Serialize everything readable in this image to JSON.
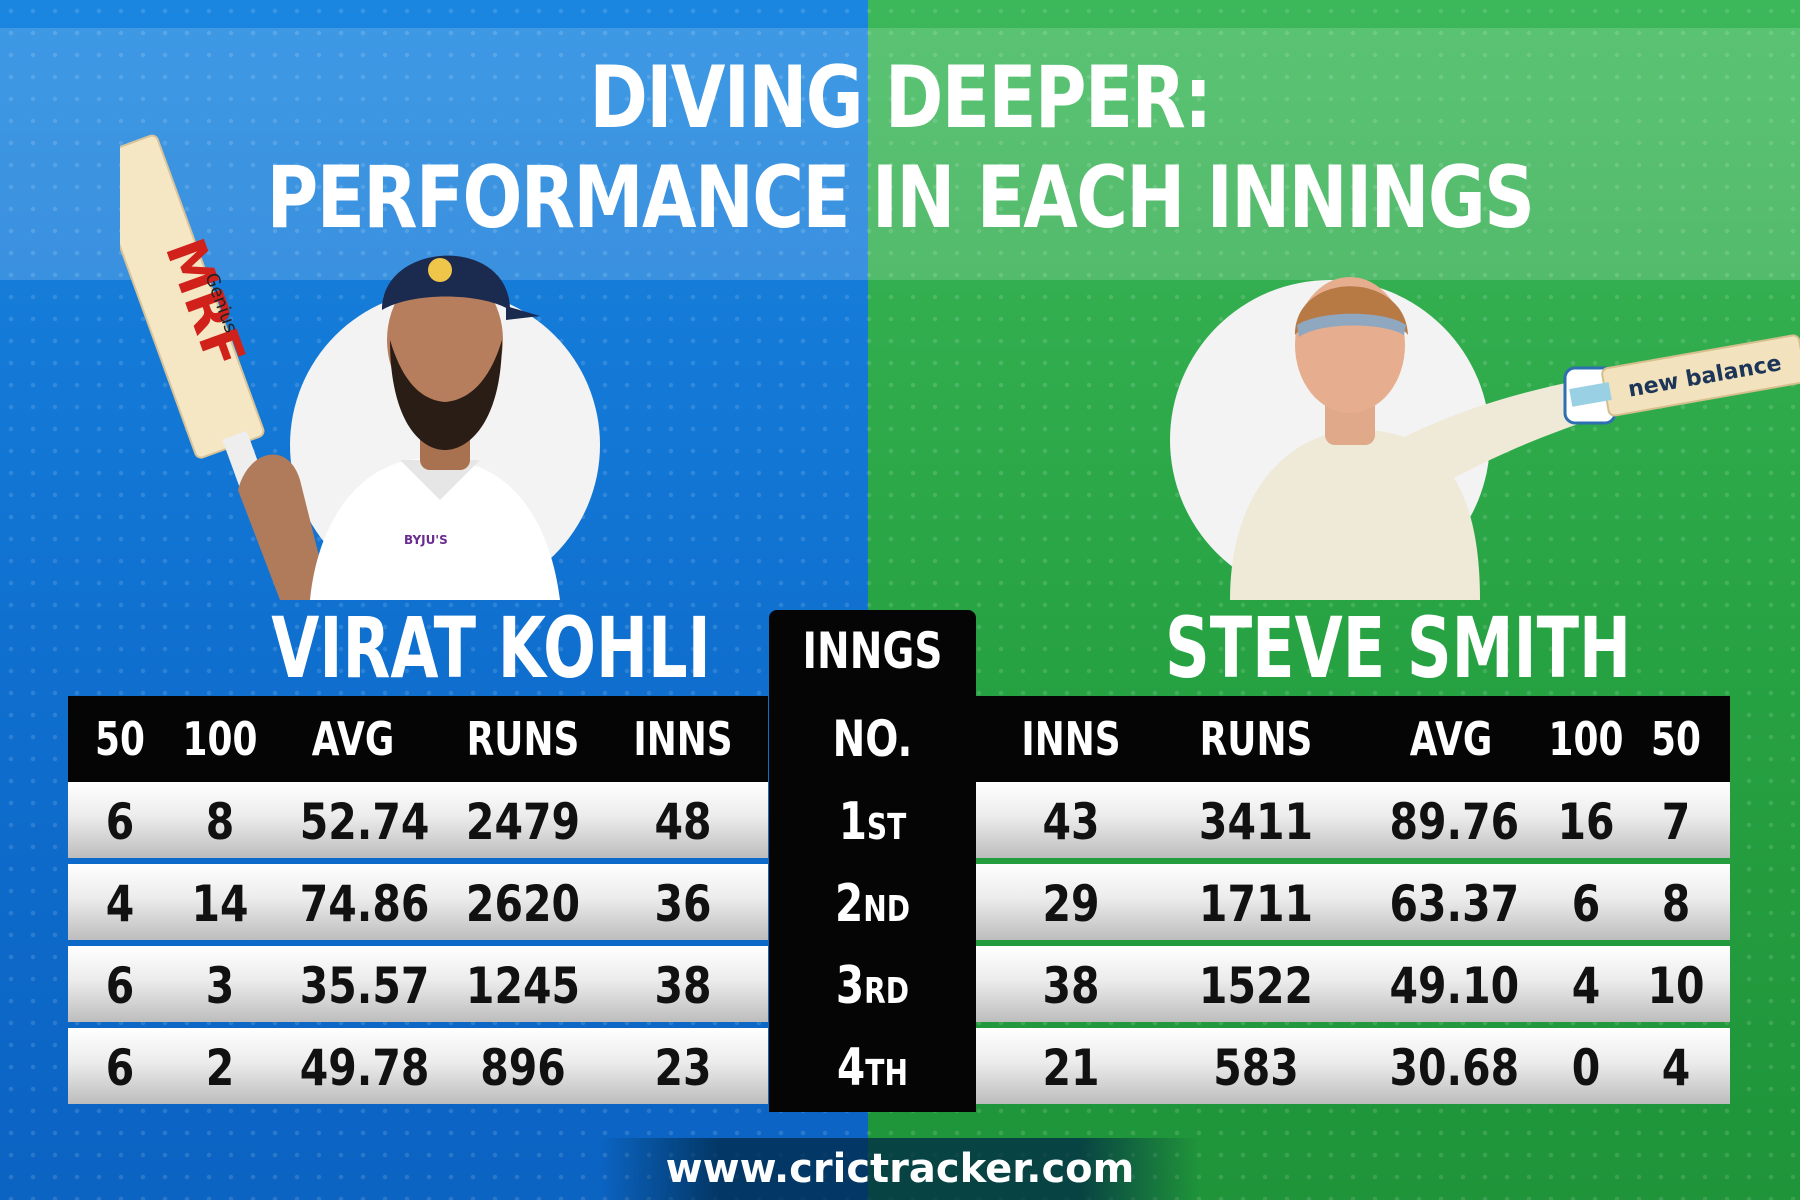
{
  "title": {
    "line1": "DIVING DEEPER:",
    "line2": "PERFORMANCE IN EACH INNINGS"
  },
  "colors": {
    "left_panel": "#0f6fcf",
    "right_panel": "#27a242",
    "table_header": "#050505"
  },
  "kohli": {
    "name": "VIRAT KOHLI",
    "bat_text": "MRF",
    "bat_sub": "Genius",
    "shirt_logo": "BYJU'S",
    "headers": [
      "50",
      "100",
      "AVG",
      "RUNS",
      "INNS"
    ],
    "rows": [
      [
        "6",
        "8",
        "52.74",
        "2479",
        "48"
      ],
      [
        "4",
        "14",
        "74.86",
        "2620",
        "36"
      ],
      [
        "6",
        "3",
        "35.57",
        "1245",
        "38"
      ],
      [
        "6",
        "2",
        "49.78",
        "896",
        "23"
      ]
    ]
  },
  "smith": {
    "name": "STEVE SMITH",
    "bat_text": "new balance",
    "headers": [
      "INNS",
      "RUNS",
      "AVG",
      "100",
      "50"
    ],
    "rows": [
      [
        "43",
        "3411",
        "89.76",
        "16",
        "7"
      ],
      [
        "29",
        "1711",
        "63.37",
        "6",
        "8"
      ],
      [
        "38",
        "1522",
        "49.10",
        "4",
        "10"
      ],
      [
        "21",
        "583",
        "30.68",
        "0",
        "4"
      ]
    ]
  },
  "innings": {
    "header_line1": "INNGS",
    "header_line2": "NO.",
    "rows": [
      {
        "num": "1",
        "suffix": "ST"
      },
      {
        "num": "2",
        "suffix": "ND"
      },
      {
        "num": "3",
        "suffix": "RD"
      },
      {
        "num": "4",
        "suffix": "TH"
      }
    ]
  },
  "footer": {
    "url": "www.crictracker.com"
  }
}
